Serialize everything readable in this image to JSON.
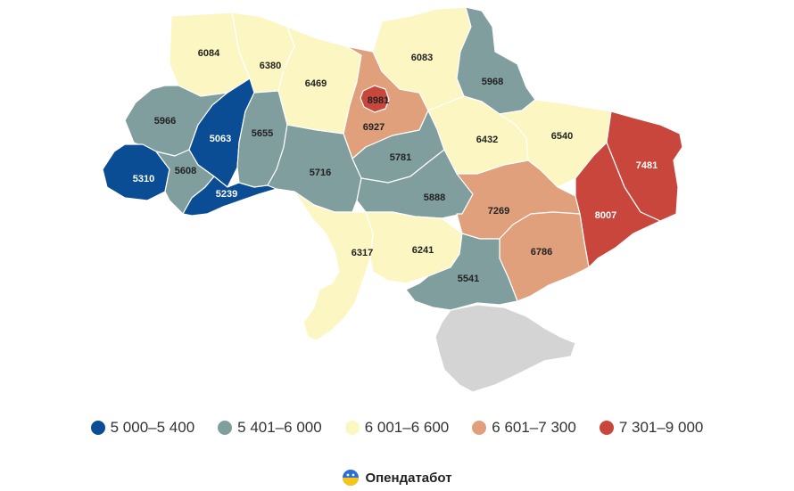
{
  "colors": {
    "c1": "#0a4d94",
    "c2": "#7f9e9d",
    "c3": "#fbf6c2",
    "c4": "#e0a07c",
    "c5": "#c8463b",
    "crimea": "#d4d4d4"
  },
  "regions": [
    {
      "id": "volyn",
      "value": "6084",
      "bucket": "c3"
    },
    {
      "id": "rivne",
      "value": "6380",
      "bucket": "c3"
    },
    {
      "id": "zhytomyr",
      "value": "6469",
      "bucket": "c3"
    },
    {
      "id": "kyiv-oblast",
      "value": "6927",
      "bucket": "c4"
    },
    {
      "id": "kyiv-city",
      "value": "8981",
      "bucket": "c5"
    },
    {
      "id": "chernihiv",
      "value": "6083",
      "bucket": "c3"
    },
    {
      "id": "sumy",
      "value": "5968",
      "bucket": "c2"
    },
    {
      "id": "lviv",
      "value": "5966",
      "bucket": "c2"
    },
    {
      "id": "ternopil",
      "value": "5063",
      "bucket": "c1"
    },
    {
      "id": "khmelnytskyi",
      "value": "5655",
      "bucket": "c2"
    },
    {
      "id": "zakarpattia",
      "value": "5310",
      "bucket": "c1"
    },
    {
      "id": "ivano-frankivsk",
      "value": "5608",
      "bucket": "c2"
    },
    {
      "id": "chernivtsi",
      "value": "5239",
      "bucket": "c1"
    },
    {
      "id": "vinnytsia",
      "value": "5716",
      "bucket": "c2"
    },
    {
      "id": "cherkasy",
      "value": "5781",
      "bucket": "c2"
    },
    {
      "id": "poltava",
      "value": "6432",
      "bucket": "c3"
    },
    {
      "id": "kharkiv",
      "value": "6540",
      "bucket": "c3"
    },
    {
      "id": "luhansk",
      "value": "7481",
      "bucket": "c5"
    },
    {
      "id": "kirovohrad",
      "value": "5888",
      "bucket": "c2"
    },
    {
      "id": "dnipropetrovsk",
      "value": "7269",
      "bucket": "c4"
    },
    {
      "id": "donetsk",
      "value": "8007",
      "bucket": "c5"
    },
    {
      "id": "odesa",
      "value": "6317",
      "bucket": "c3"
    },
    {
      "id": "mykolaiv",
      "value": "6241",
      "bucket": "c3"
    },
    {
      "id": "zaporizhzhia",
      "value": "6786",
      "bucket": "c4"
    },
    {
      "id": "kherson",
      "value": "5541",
      "bucket": "c2"
    }
  ],
  "legend": [
    {
      "label": "5 000–5 400",
      "color": "#0a4d94"
    },
    {
      "label": "5 401–6 000",
      "color": "#7f9e9d"
    },
    {
      "label": "6 001–6 600",
      "color": "#fbf6c2"
    },
    {
      "label": "6 601–7 300",
      "color": "#e0a07c"
    },
    {
      "label": "7 301–9 000",
      "color": "#c8463b"
    }
  ],
  "brand": {
    "name": "Опендатабот",
    "logo_icon": "opendatabot-logo-icon"
  }
}
